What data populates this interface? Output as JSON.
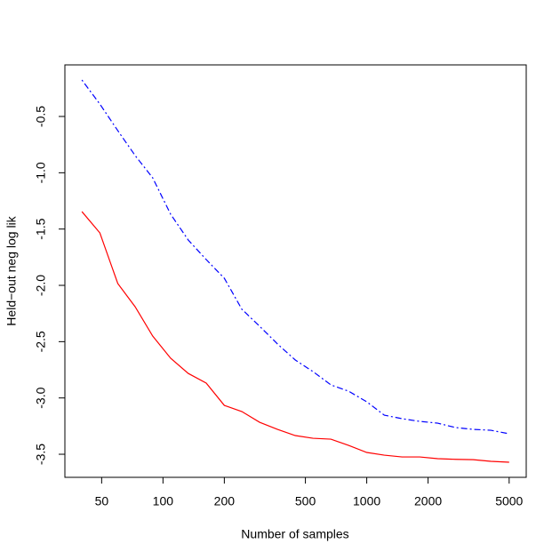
{
  "chart_data": {
    "type": "line",
    "xlabel": "Number of samples",
    "ylabel": "Held−out neg log lik",
    "xscale": "log",
    "x": [
      40,
      49,
      60,
      73,
      89,
      109,
      133,
      163,
      200,
      244,
      298,
      365,
      446,
      545,
      667,
      815,
      1000,
      1220,
      1490,
      1820,
      2230,
      2730,
      3330,
      4070,
      5000
    ],
    "series": [
      {
        "color": "#ff0000",
        "line_style": "solid",
        "values": [
          -1.345,
          -1.534,
          -1.984,
          -2.19,
          -2.45,
          -2.647,
          -2.782,
          -2.868,
          -3.066,
          -3.121,
          -3.216,
          -3.279,
          -3.334,
          -3.358,
          -3.366,
          -3.421,
          -3.484,
          -3.508,
          -3.524,
          -3.524,
          -3.539,
          -3.545,
          -3.548,
          -3.563,
          -3.571
        ]
      },
      {
        "color": "#0000ff",
        "line_style": "dotdash",
        "values": [
          -0.176,
          -0.39,
          -0.626,
          -0.847,
          -1.045,
          -1.368,
          -1.597,
          -1.771,
          -1.937,
          -2.213,
          -2.363,
          -2.521,
          -2.663,
          -2.766,
          -2.884,
          -2.94,
          -3.034,
          -3.153,
          -3.184,
          -3.208,
          -3.224,
          -3.263,
          -3.279,
          -3.287,
          -3.318
        ]
      }
    ],
    "xlim": [
      33,
      6064
    ],
    "ylim": [
      -3.705,
      -0.042
    ],
    "xticks": [
      50,
      100,
      200,
      500,
      1000,
      2000,
      5000
    ],
    "yticks": [
      -0.5,
      {
        "value": -1,
        "label": "-1.0"
      },
      -1.5,
      {
        "value": -2,
        "label": "-2.0"
      },
      -2.5,
      {
        "value": -3,
        "label": "-3.0"
      },
      -3.5
    ]
  }
}
